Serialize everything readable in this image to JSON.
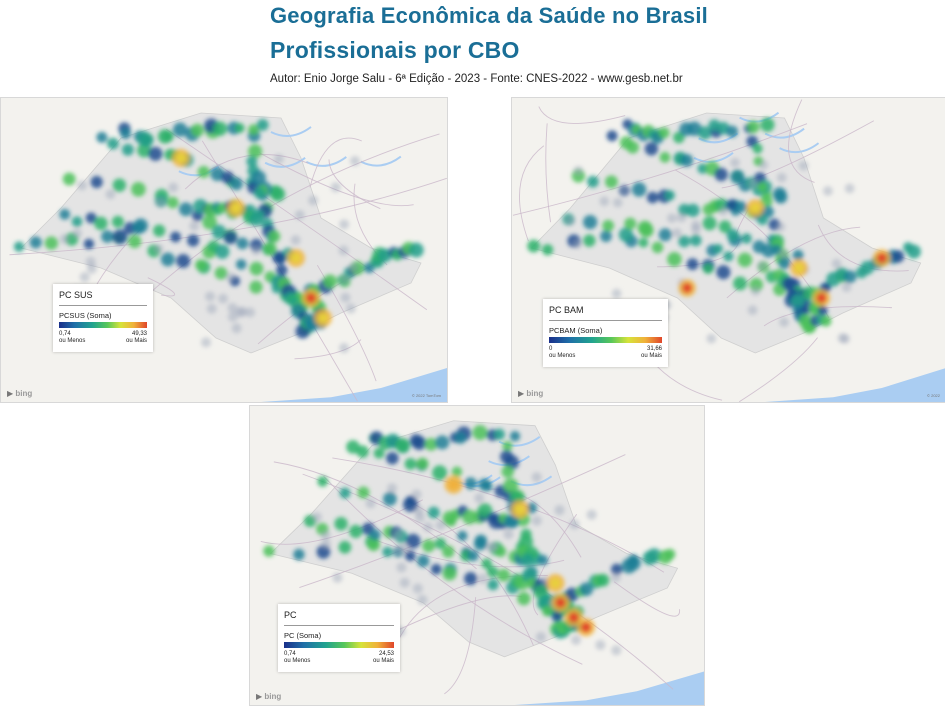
{
  "header": {
    "title_line1": "Geografia Econômica da Saúde no Brasil",
    "title_line2": "Profissionais por CBO",
    "author": "Autor: Enio Jorge Salu - 6ª Edição - 2023 - Fonte: CNES-2022 - www.gesb.net.br"
  },
  "maps": [
    {
      "legend_title": "PC SUS",
      "field": "PCSUS (Soma)",
      "min_value": "0,74",
      "min_label": "ou Menos",
      "max_value": "49,33",
      "max_label": "ou Mais",
      "provider": "bing",
      "copyright": "© 2022 TomTom"
    },
    {
      "legend_title": "PC BAM",
      "field": "PCBAM (Soma)",
      "min_value": "0",
      "min_label": "ou Menos",
      "max_value": "31,66",
      "max_label": "ou Mais",
      "provider": "bing",
      "copyright": "© 2022"
    },
    {
      "legend_title": "PC",
      "field": "PC (Soma)",
      "min_value": "0,74",
      "min_label": "ou Menos",
      "max_value": "24,53",
      "max_label": "ou Mais",
      "provider": "bing",
      "copyright": ""
    }
  ],
  "colors": {
    "title": "#1a6e96",
    "land": "#f3f2ee",
    "state_region": "#e4e4e4",
    "water": "#aacdf2",
    "road": "#c9b7c9",
    "heat_low": "#1a2f8a",
    "heat_mid": "#2aa87a",
    "heat_high": "#e0462a"
  },
  "icons": [
    "bing-logo-icon"
  ]
}
